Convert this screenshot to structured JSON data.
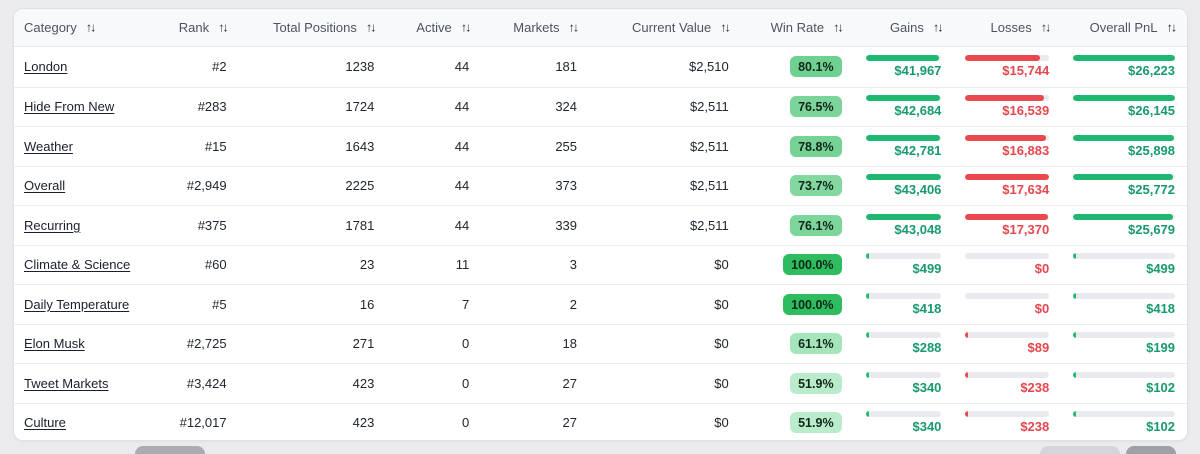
{
  "page": {
    "background": "#ebebed",
    "card_background": "#ffffff",
    "header_background": "#f8f9fa"
  },
  "colors": {
    "bar_green": "#1eb872",
    "bar_red": "#e8484e",
    "bar_track": "#e9eaed",
    "value_text_green": "#189a6c",
    "value_text_red": "#e5474d",
    "header_text": "#4d5360",
    "cell_text": "#20262f",
    "badge_text": "#10271a",
    "badge_green_full": "#2ebd5e"
  },
  "table": {
    "sort_icon": "↑↓",
    "columns": [
      {
        "id": "category",
        "label": "Category"
      },
      {
        "id": "rank",
        "label": "Rank"
      },
      {
        "id": "total_positions",
        "label": "Total Positions"
      },
      {
        "id": "active",
        "label": "Active"
      },
      {
        "id": "markets",
        "label": "Markets"
      },
      {
        "id": "current_value",
        "label": "Current Value"
      },
      {
        "id": "win_rate",
        "label": "Win Rate"
      },
      {
        "id": "gains",
        "label": "Gains"
      },
      {
        "id": "losses",
        "label": "Losses"
      },
      {
        "id": "overall_pnl",
        "label": "Overall PnL"
      }
    ],
    "rows": [
      {
        "category": "London",
        "rank": "#2",
        "total_positions": "1238",
        "active": "44",
        "markets": "181",
        "current_value": "$2,510",
        "win_rate": "80.1%",
        "win_rate_color": "#6fd190",
        "gains": "$41,967",
        "gains_pct": 96.7,
        "losses": "$15,744",
        "losses_pct": 89.3,
        "overall_pnl": "$26,223",
        "overall_pnl_pct": 100
      },
      {
        "category": "Hide From New",
        "rank": "#283",
        "total_positions": "1724",
        "active": "44",
        "markets": "324",
        "current_value": "$2,511",
        "win_rate": "76.5%",
        "win_rate_color": "#7bd499",
        "gains": "$42,684",
        "gains_pct": 98.3,
        "losses": "$16,539",
        "losses_pct": 93.8,
        "overall_pnl": "$26,145",
        "overall_pnl_pct": 99.7
      },
      {
        "category": "Weather",
        "rank": "#15",
        "total_positions": "1643",
        "active": "44",
        "markets": "255",
        "current_value": "$2,511",
        "win_rate": "78.8%",
        "win_rate_color": "#75d294",
        "gains": "$42,781",
        "gains_pct": 98.6,
        "losses": "$16,883",
        "losses_pct": 95.7,
        "overall_pnl": "$25,898",
        "overall_pnl_pct": 98.8
      },
      {
        "category": "Overall",
        "rank": "#2,949",
        "total_positions": "2225",
        "active": "44",
        "markets": "373",
        "current_value": "$2,511",
        "win_rate": "73.7%",
        "win_rate_color": "#83d8a0",
        "gains": "$43,406",
        "gains_pct": 100,
        "losses": "$17,634",
        "losses_pct": 100,
        "overall_pnl": "$25,772",
        "overall_pnl_pct": 98.3
      },
      {
        "category": "Recurring",
        "rank": "#375",
        "total_positions": "1781",
        "active": "44",
        "markets": "339",
        "current_value": "$2,511",
        "win_rate": "76.1%",
        "win_rate_color": "#7cd59a",
        "gains": "$43,048",
        "gains_pct": 99.2,
        "losses": "$17,370",
        "losses_pct": 98.5,
        "overall_pnl": "$25,679",
        "overall_pnl_pct": 97.9
      },
      {
        "category": "Climate & Science",
        "rank": "#60",
        "total_positions": "23",
        "active": "11",
        "markets": "3",
        "current_value": "$0",
        "win_rate": "100.0%",
        "win_rate_color": "#2ebd5e",
        "gains": "$499",
        "gains_pct": 1.1,
        "losses": "$0",
        "losses_pct": 0,
        "overall_pnl": "$499",
        "overall_pnl_pct": 1.9
      },
      {
        "category": "Daily Temperature",
        "rank": "#5",
        "total_positions": "16",
        "active": "7",
        "markets": "2",
        "current_value": "$0",
        "win_rate": "100.0%",
        "win_rate_color": "#2ebd5e",
        "gains": "$418",
        "gains_pct": 1.0,
        "losses": "$0",
        "losses_pct": 0,
        "overall_pnl": "$418",
        "overall_pnl_pct": 1.6
      },
      {
        "category": "Elon Musk",
        "rank": "#2,725",
        "total_positions": "271",
        "active": "0",
        "markets": "18",
        "current_value": "$0",
        "win_rate": "61.1%",
        "win_rate_color": "#a5e5ba",
        "gains": "$288",
        "gains_pct": 0.7,
        "losses": "$89",
        "losses_pct": 0.5,
        "overall_pnl": "$199",
        "overall_pnl_pct": 0.8
      },
      {
        "category": "Tweet Markets",
        "rank": "#3,424",
        "total_positions": "423",
        "active": "0",
        "markets": "27",
        "current_value": "$0",
        "win_rate": "51.9%",
        "win_rate_color": "#baebca",
        "gains": "$340",
        "gains_pct": 0.8,
        "losses": "$238",
        "losses_pct": 1.3,
        "overall_pnl": "$102",
        "overall_pnl_pct": 0.4
      },
      {
        "category": "Culture",
        "rank": "#12,017",
        "total_positions": "423",
        "active": "0",
        "markets": "27",
        "current_value": "$0",
        "win_rate": "51.9%",
        "win_rate_color": "#baebca",
        "gains": "$340",
        "gains_pct": 0.8,
        "losses": "$238",
        "losses_pct": 1.3,
        "overall_pnl": "$102",
        "overall_pnl_pct": 0.4
      }
    ]
  },
  "footer": {
    "buttons": [
      {
        "name": "footer-button-left",
        "color": "#ababb0"
      },
      {
        "name": "footer-button-right-secondary",
        "color": "#d5d6da"
      },
      {
        "name": "footer-button-right-primary",
        "color": "#9da0a6"
      }
    ]
  }
}
